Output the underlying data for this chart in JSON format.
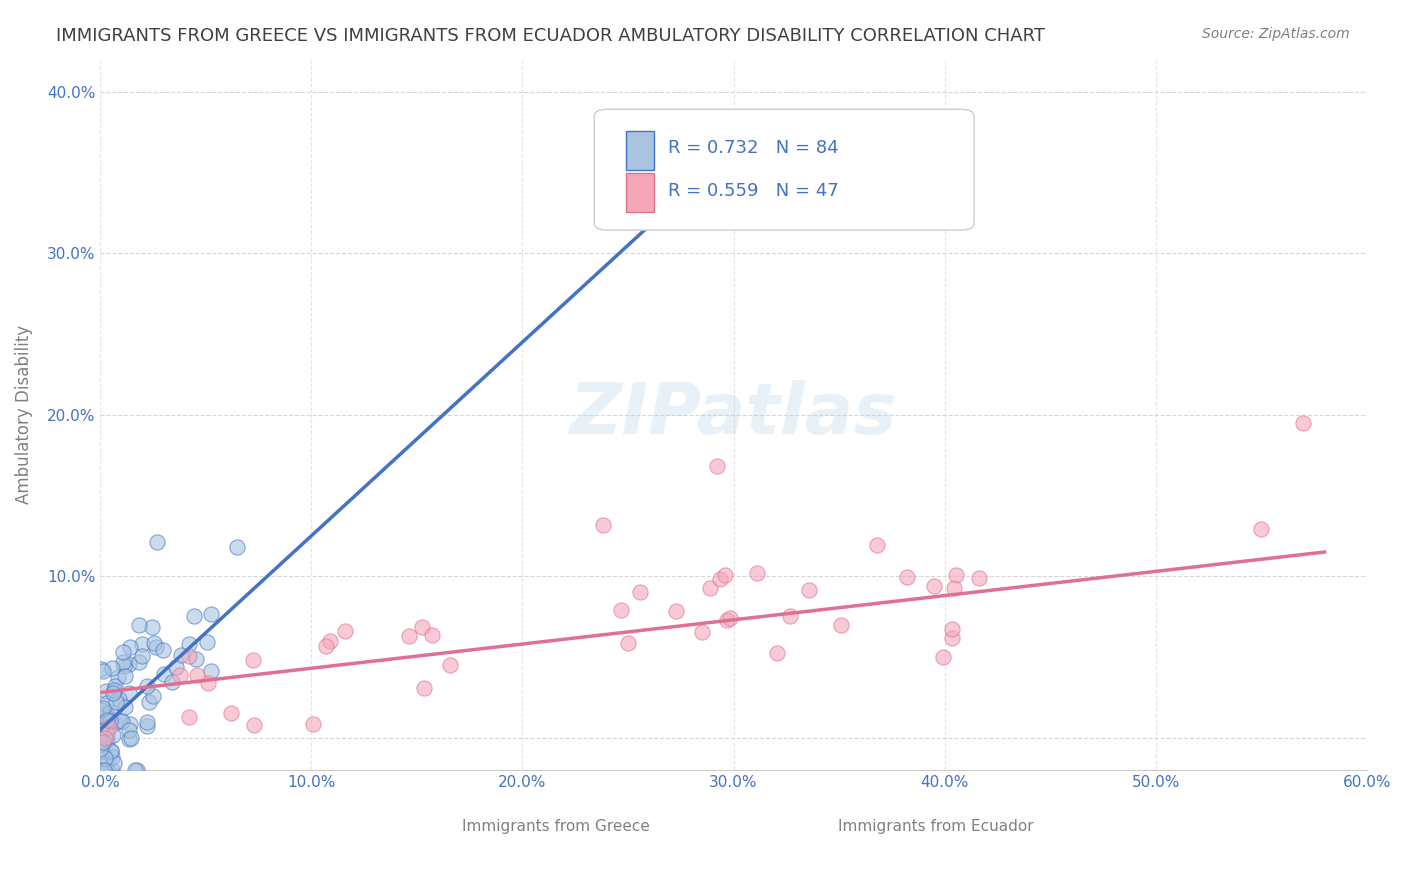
{
  "title": "IMMIGRANTS FROM GREECE VS IMMIGRANTS FROM ECUADOR AMBULATORY DISABILITY CORRELATION CHART",
  "source": "Source: ZipAtlas.com",
  "ylabel": "Ambulatory Disability",
  "xlabel_greece": "Immigrants from Greece",
  "xlabel_ecuador": "Immigrants from Ecuador",
  "xlim": [
    0.0,
    0.6
  ],
  "ylim": [
    -0.02,
    0.42
  ],
  "xticks": [
    0.0,
    0.1,
    0.2,
    0.3,
    0.4,
    0.5,
    0.6
  ],
  "xticklabels": [
    "0.0%",
    "10.0%",
    "20.0%",
    "30.0%",
    "40.0%",
    "50.0%",
    "60.0%"
  ],
  "yticks": [
    0.0,
    0.1,
    0.2,
    0.3,
    0.4
  ],
  "yticklabels": [
    "",
    "10.0%",
    "20.0%",
    "30.0%",
    "40.0%"
  ],
  "greece_R": 0.732,
  "greece_N": 84,
  "ecuador_R": 0.559,
  "ecuador_N": 47,
  "greece_color": "#a8c4e0",
  "ecuador_color": "#f4a7b9",
  "greece_line_color": "#4472c4",
  "ecuador_line_color": "#e07090",
  "legend_R_color": "#4472c4",
  "legend_N_color": "#cc0000",
  "watermark": "ZIPatlas",
  "background_color": "#ffffff",
  "grid_color": "#cccccc",
  "title_color": "#404040",
  "axis_label_color": "#808080",
  "tick_label_color": "#4472c4",
  "greece_slope": 1.2,
  "greece_intercept": 0.005,
  "ecuador_slope": 0.15,
  "ecuador_intercept": 0.028
}
